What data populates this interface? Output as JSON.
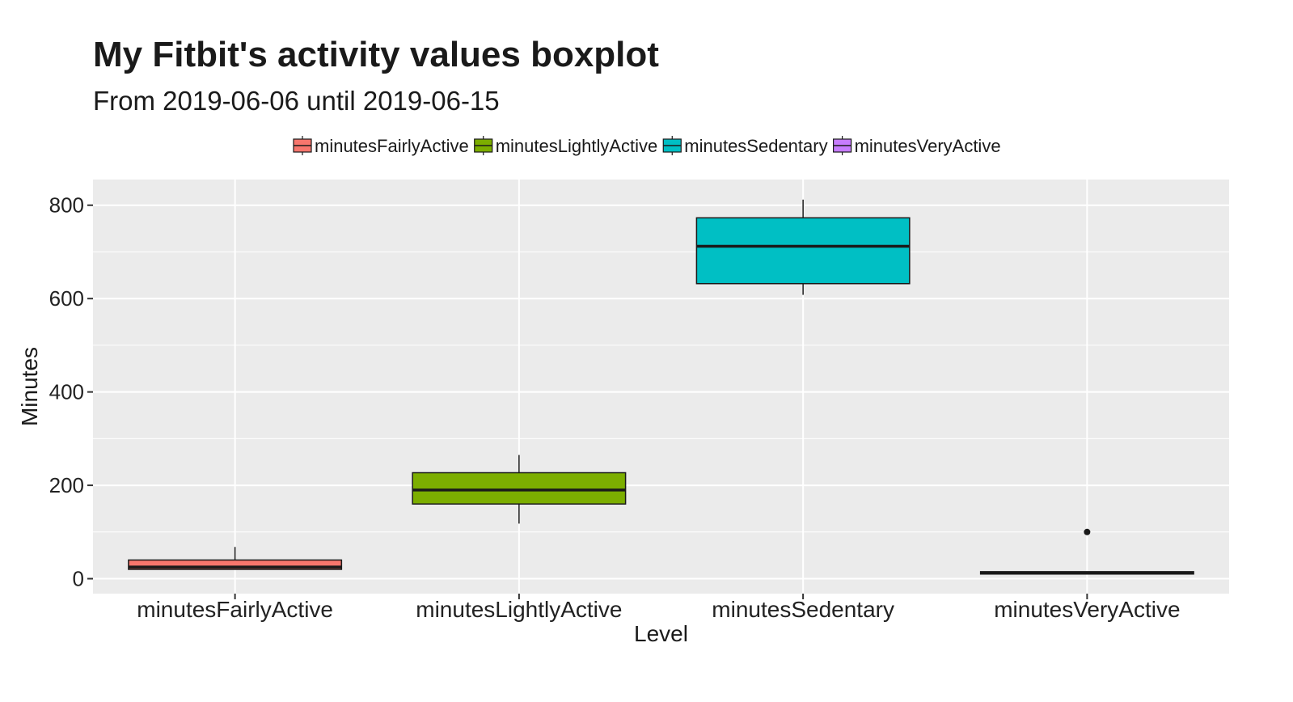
{
  "colors": {
    "panel_bg": "#EBEBEB",
    "grid": "#FFFFFF",
    "box_border": "#1A1A1A",
    "text": "#1A1A1A",
    "tick_text": "#222222"
  },
  "chart_data": {
    "type": "boxplot",
    "title": "My Fitbit's activity values boxplot",
    "subtitle": "From 2019-06-06 until 2019-06-15",
    "xlabel": "Level",
    "ylabel": "Minutes",
    "ylim": [
      -32,
      855
    ],
    "yticks": [
      0,
      200,
      400,
      600,
      800
    ],
    "grid": true,
    "legend_position": "top",
    "categories": [
      "minutesFairlyActive",
      "minutesLightlyActive",
      "minutesSedentary",
      "minutesVeryActive"
    ],
    "series": [
      {
        "name": "minutesFairlyActive",
        "color": "#F8766D",
        "stats": {
          "min": 20,
          "q1": 20,
          "median": 25,
          "q3": 40,
          "max": 68
        },
        "outliers": []
      },
      {
        "name": "minutesLightlyActive",
        "color": "#7CAE00",
        "stats": {
          "min": 118,
          "q1": 160,
          "median": 190,
          "q3": 227,
          "max": 265
        },
        "outliers": []
      },
      {
        "name": "minutesSedentary",
        "color": "#00BFC4",
        "stats": {
          "min": 608,
          "q1": 632,
          "median": 712,
          "q3": 773,
          "max": 812
        },
        "outliers": []
      },
      {
        "name": "minutesVeryActive",
        "color": "#C77CFF",
        "stats": {
          "min": 10,
          "q1": 10,
          "median": 12,
          "q3": 15,
          "max": 15
        },
        "outliers": [
          100
        ]
      }
    ]
  }
}
